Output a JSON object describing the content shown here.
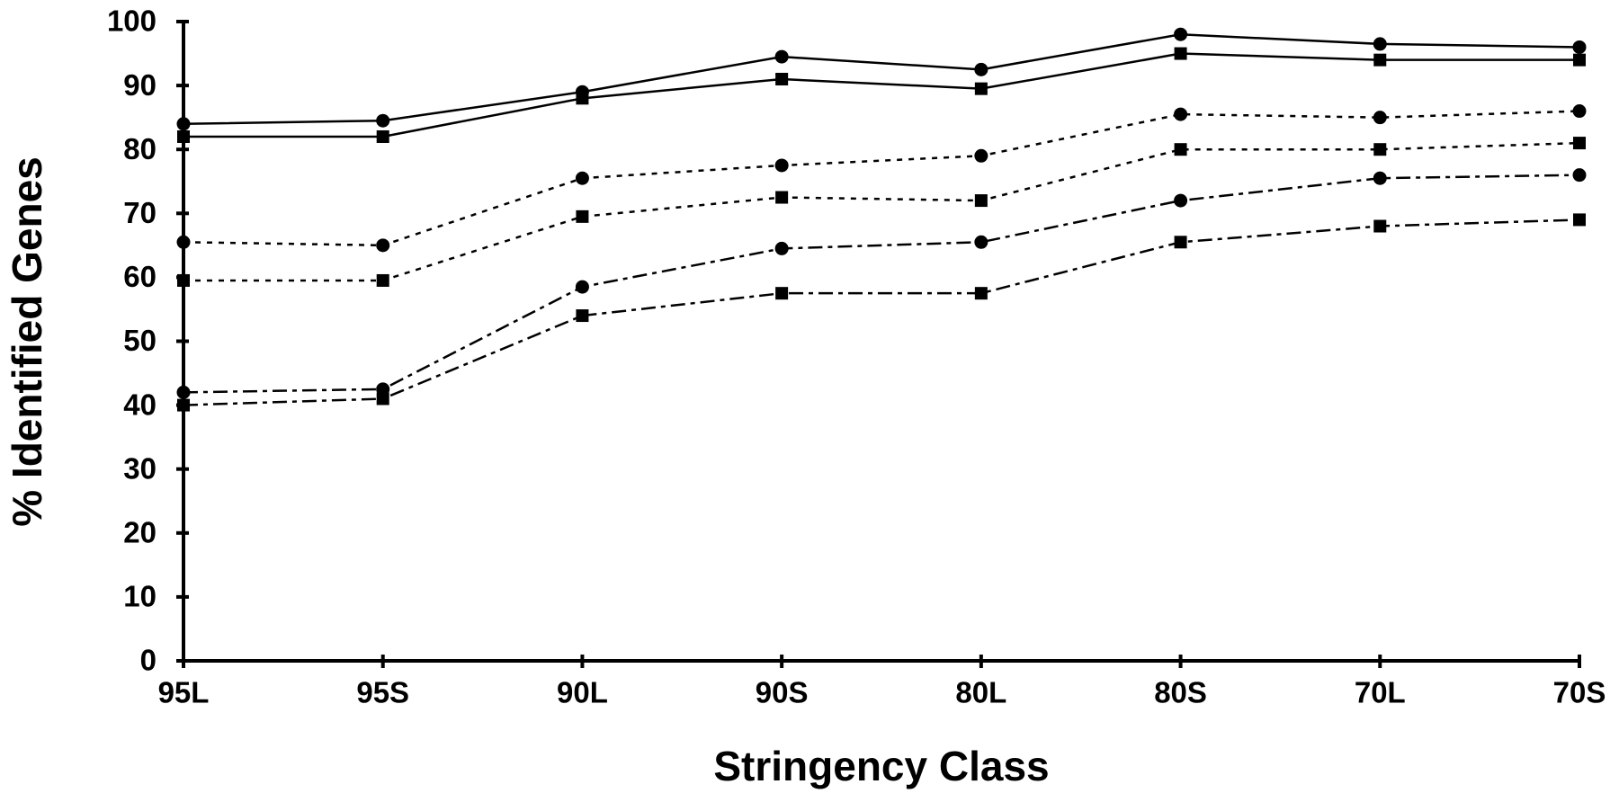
{
  "chart_data": {
    "type": "line",
    "xlabel": "Stringency Class",
    "ylabel": "% Identified Genes",
    "categories": [
      "95L",
      "95S",
      "90L",
      "90S",
      "80L",
      "80S",
      "70L",
      "70S"
    ],
    "ylim": [
      0,
      100
    ],
    "yticks": [
      0,
      10,
      20,
      30,
      40,
      50,
      60,
      70,
      80,
      90,
      100
    ],
    "grid": false,
    "series": [
      {
        "color": "#000000",
        "marker": "circle",
        "dash": "solid",
        "values": [
          84,
          84.5,
          89,
          94.5,
          92.5,
          98,
          96.5,
          96
        ]
      },
      {
        "color": "#000000",
        "marker": "square",
        "dash": "solid",
        "values": [
          82,
          82,
          88,
          91,
          89.5,
          95,
          94,
          94
        ]
      },
      {
        "color": "#000000",
        "marker": "circle",
        "dash": "dotted",
        "values": [
          65.5,
          65,
          75.5,
          77.5,
          79,
          85.5,
          85,
          86
        ]
      },
      {
        "color": "#000000",
        "marker": "square",
        "dash": "dotted",
        "values": [
          59.5,
          59.5,
          69.5,
          72.5,
          72,
          80,
          80,
          81
        ]
      },
      {
        "color": "#000000",
        "marker": "circle",
        "dash": "dashdot",
        "values": [
          42,
          42.5,
          58.5,
          64.5,
          65.5,
          72,
          75.5,
          76
        ]
      },
      {
        "color": "#000000",
        "marker": "square",
        "dash": "dashdot",
        "values": [
          40,
          41,
          54,
          57.5,
          57.5,
          65.5,
          68,
          69
        ]
      }
    ]
  }
}
